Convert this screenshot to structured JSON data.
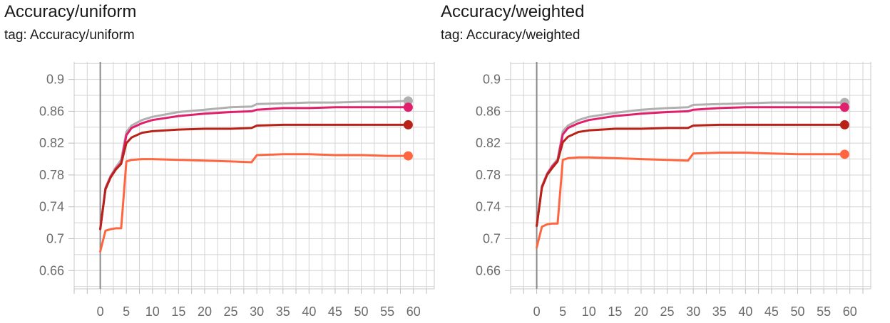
{
  "chart_data": [
    {
      "type": "line",
      "title": "Accuracy/uniform",
      "subtitle": "tag: Accuracy/uniform",
      "xlabel": "",
      "ylabel": "",
      "xlim": [
        -5,
        64
      ],
      "ylim": [
        0.637,
        0.922
      ],
      "xticks": [
        0,
        5,
        10,
        15,
        20,
        25,
        30,
        35,
        40,
        45,
        50,
        55,
        60
      ],
      "yticks": [
        0.66,
        0.7,
        0.74,
        0.78,
        0.82,
        0.86,
        0.9
      ],
      "ytick_labels": [
        "0.66",
        "0.7",
        "0.74",
        "0.78",
        "0.82",
        "0.86",
        "0.9"
      ],
      "grid": true,
      "legend": "none",
      "series": [
        {
          "color": "#b0b0b0",
          "x": [
            0,
            1,
            2,
            3,
            4,
            5,
            6,
            8,
            10,
            15,
            20,
            25,
            29,
            30,
            35,
            40,
            45,
            50,
            55,
            59
          ],
          "y": [
            0.712,
            0.764,
            0.779,
            0.79,
            0.799,
            0.834,
            0.842,
            0.849,
            0.853,
            0.859,
            0.862,
            0.865,
            0.866,
            0.869,
            0.87,
            0.871,
            0.871,
            0.872,
            0.872,
            0.873
          ]
        },
        {
          "color": "#e0206c",
          "x": [
            0,
            1,
            2,
            3,
            4,
            5,
            6,
            8,
            10,
            15,
            20,
            25,
            29,
            30,
            35,
            40,
            45,
            50,
            55,
            59
          ],
          "y": [
            0.712,
            0.763,
            0.778,
            0.788,
            0.795,
            0.83,
            0.839,
            0.845,
            0.849,
            0.854,
            0.857,
            0.859,
            0.86,
            0.862,
            0.864,
            0.864,
            0.865,
            0.865,
            0.865,
            0.865
          ]
        },
        {
          "color": "#b82218",
          "x": [
            0,
            1,
            2,
            3,
            4,
            5,
            6,
            8,
            10,
            15,
            20,
            25,
            29,
            30,
            35,
            40,
            45,
            50,
            55,
            59
          ],
          "y": [
            0.712,
            0.762,
            0.777,
            0.787,
            0.794,
            0.82,
            0.827,
            0.833,
            0.835,
            0.837,
            0.838,
            0.838,
            0.839,
            0.842,
            0.843,
            0.843,
            0.843,
            0.843,
            0.843,
            0.843
          ]
        },
        {
          "color": "#ff6640",
          "x": [
            0,
            1,
            2,
            3,
            4,
            5,
            6,
            8,
            10,
            15,
            20,
            25,
            29,
            30,
            35,
            40,
            45,
            50,
            55,
            59
          ],
          "y": [
            0.684,
            0.71,
            0.712,
            0.713,
            0.713,
            0.797,
            0.799,
            0.8,
            0.8,
            0.799,
            0.798,
            0.797,
            0.796,
            0.805,
            0.806,
            0.806,
            0.805,
            0.805,
            0.804,
            0.804
          ]
        }
      ]
    },
    {
      "type": "line",
      "title": "Accuracy/weighted",
      "subtitle": "tag: Accuracy/weighted",
      "xlabel": "",
      "ylabel": "",
      "xlim": [
        -5,
        64
      ],
      "ylim": [
        0.637,
        0.922
      ],
      "xticks": [
        0,
        5,
        10,
        15,
        20,
        25,
        30,
        35,
        40,
        45,
        50,
        55,
        60
      ],
      "yticks": [
        0.66,
        0.7,
        0.74,
        0.78,
        0.82,
        0.86,
        0.9
      ],
      "ytick_labels": [
        "0.66",
        "0.7",
        "0.74",
        "0.78",
        "0.82",
        "0.86",
        "0.9"
      ],
      "grid": true,
      "legend": "none",
      "series": [
        {
          "color": "#b0b0b0",
          "x": [
            0,
            1,
            2,
            3,
            4,
            5,
            6,
            8,
            10,
            15,
            20,
            25,
            29,
            30,
            35,
            40,
            45,
            50,
            55,
            59
          ],
          "y": [
            0.716,
            0.766,
            0.782,
            0.792,
            0.8,
            0.835,
            0.842,
            0.849,
            0.853,
            0.858,
            0.862,
            0.864,
            0.865,
            0.868,
            0.869,
            0.87,
            0.871,
            0.871,
            0.871,
            0.871
          ]
        },
        {
          "color": "#e0206c",
          "x": [
            0,
            1,
            2,
            3,
            4,
            5,
            6,
            8,
            10,
            15,
            20,
            25,
            29,
            30,
            35,
            40,
            45,
            50,
            55,
            59
          ],
          "y": [
            0.716,
            0.765,
            0.781,
            0.791,
            0.798,
            0.831,
            0.839,
            0.845,
            0.849,
            0.854,
            0.857,
            0.859,
            0.86,
            0.862,
            0.864,
            0.865,
            0.865,
            0.865,
            0.865,
            0.865
          ]
        },
        {
          "color": "#b82218",
          "x": [
            0,
            1,
            2,
            3,
            4,
            5,
            6,
            8,
            10,
            15,
            20,
            25,
            29,
            30,
            35,
            40,
            45,
            50,
            55,
            59
          ],
          "y": [
            0.716,
            0.764,
            0.78,
            0.789,
            0.797,
            0.821,
            0.828,
            0.834,
            0.836,
            0.838,
            0.838,
            0.839,
            0.839,
            0.842,
            0.843,
            0.843,
            0.843,
            0.843,
            0.843,
            0.843
          ]
        },
        {
          "color": "#ff6640",
          "x": [
            0,
            1,
            2,
            3,
            4,
            5,
            6,
            8,
            10,
            15,
            20,
            25,
            29,
            30,
            35,
            40,
            45,
            50,
            55,
            59
          ],
          "y": [
            0.689,
            0.715,
            0.718,
            0.719,
            0.719,
            0.799,
            0.801,
            0.802,
            0.802,
            0.801,
            0.8,
            0.799,
            0.798,
            0.807,
            0.808,
            0.808,
            0.807,
            0.806,
            0.806,
            0.806
          ]
        }
      ]
    }
  ]
}
